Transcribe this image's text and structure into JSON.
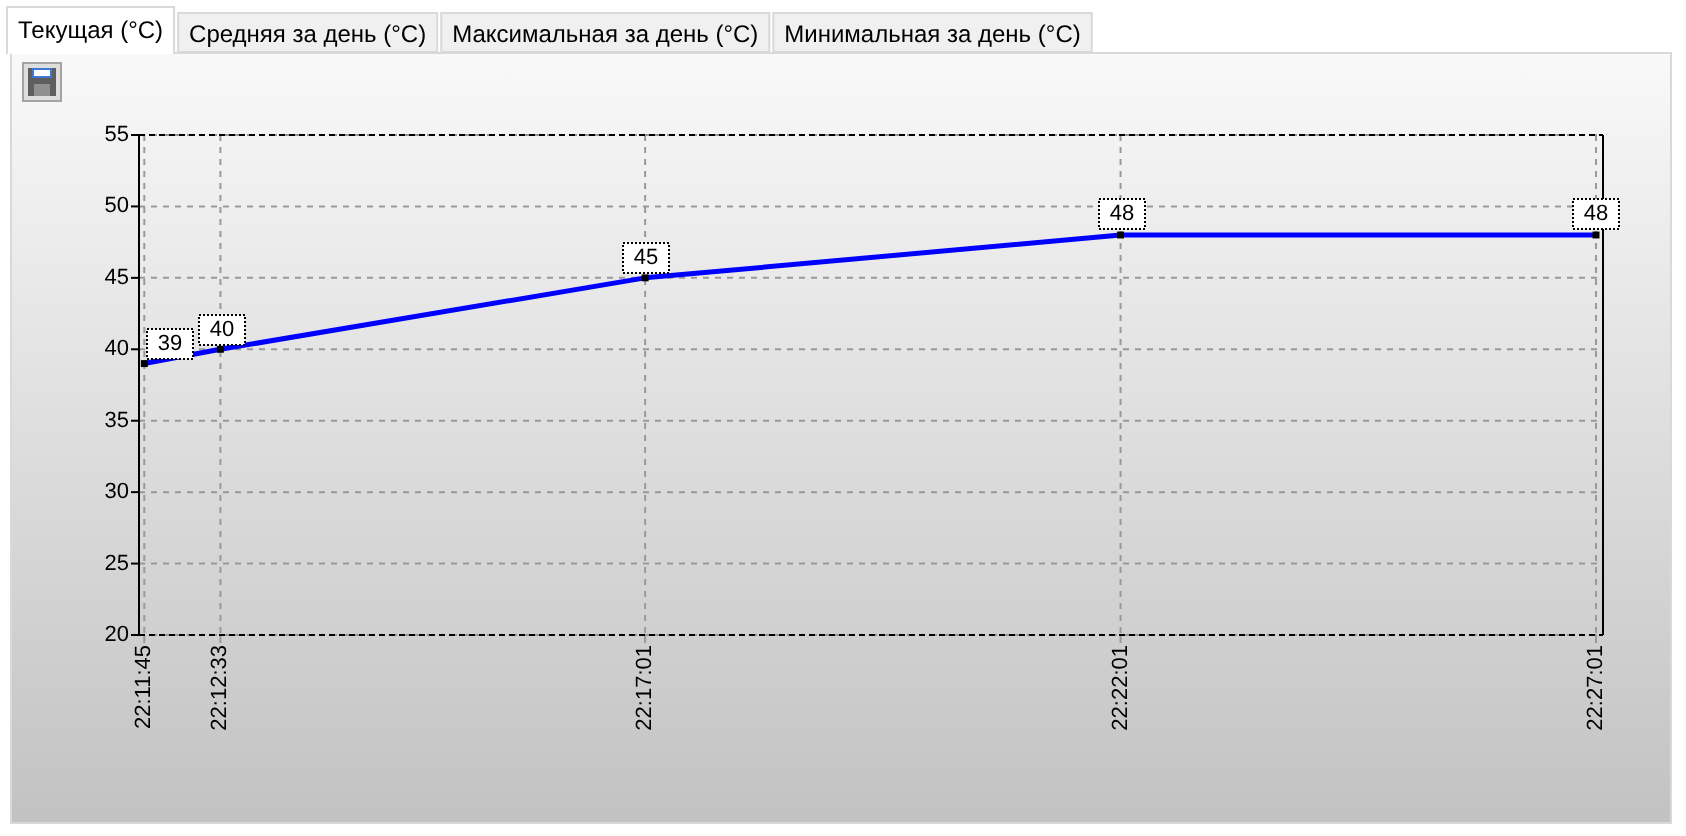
{
  "chart_data": {
    "type": "line",
    "title": "Текущая (°C)",
    "annotations": [
      "Средняя за день (°C)",
      "Максимальная за день (°C)",
      "Минимальная за день (°C)"
    ],
    "x": [
      22.19583,
      22.20917,
      22.28361,
      22.36694,
      22.45028
    ],
    "series": [
      {
        "color": "#0000ff",
        "values": [
          39,
          40,
          45,
          48,
          48
        ]
      }
    ],
    "xlim": [
      22.1949,
      22.4515
    ],
    "xticks": [
      {
        "value": 22.19583,
        "label": "22:11:45"
      },
      {
        "value": 22.20917,
        "label": "22:12:33"
      },
      {
        "value": 22.28361,
        "label": "22:17:01"
      },
      {
        "value": 22.36694,
        "label": "22:22:01"
      },
      {
        "value": 22.45028,
        "label": "22:27:01"
      }
    ],
    "ylim": [
      20,
      55
    ],
    "yticks": [
      20,
      25,
      30,
      35,
      40,
      45,
      50,
      55
    ],
    "grid": true,
    "marker": "square",
    "data_labels": true
  }
}
